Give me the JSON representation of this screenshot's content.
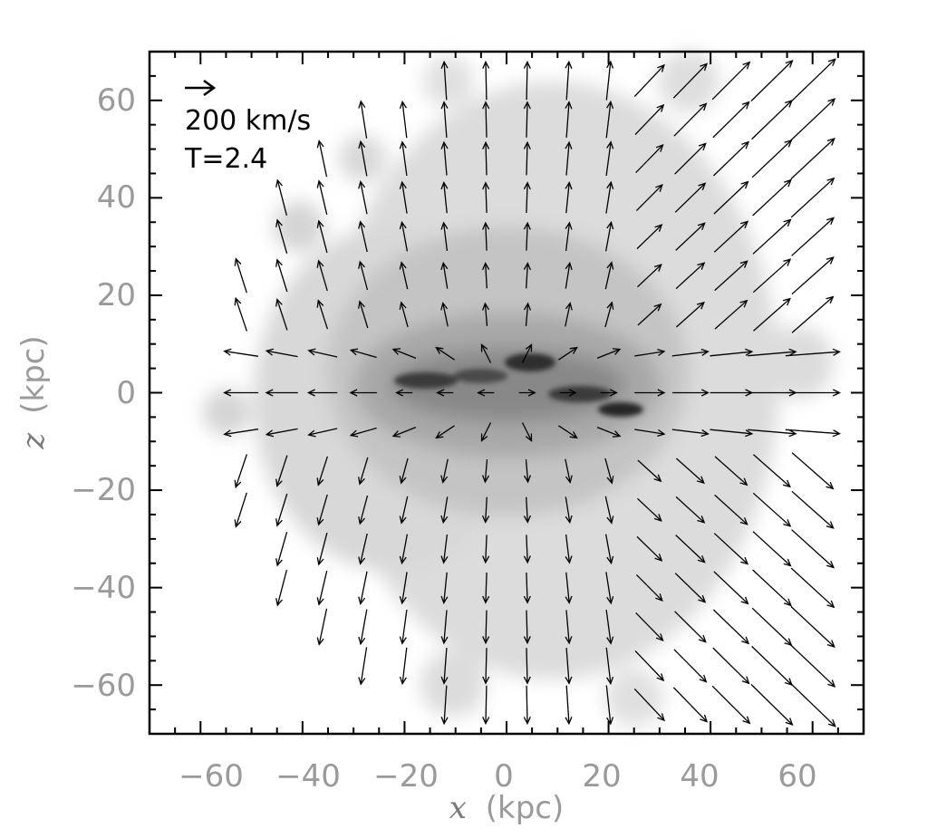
{
  "chart_data": {
    "type": "scatter",
    "subtype": "velocity-vector-field over gas density map",
    "xlabel_var": "x",
    "xlabel_unit": "(kpc)",
    "ylabel_var": "z",
    "ylabel_unit": "(kpc)",
    "xlim": [
      -70,
      70
    ],
    "ylim": [
      -70,
      70
    ],
    "x_ticks": [
      -60,
      -40,
      -20,
      0,
      20,
      40,
      60
    ],
    "y_ticks": [
      -60,
      -40,
      -20,
      0,
      20,
      40,
      60
    ],
    "x_tick_labels": [
      "−60",
      "−40",
      "−20",
      "0",
      "20",
      "40",
      "60"
    ],
    "y_tick_labels": [
      "−60",
      "−40",
      "−20",
      "0",
      "20",
      "40",
      "60"
    ],
    "annotations": {
      "scale_arrow_label": "200 km/s",
      "scale_arrow_speed_kms": 200,
      "time_label": "T=2.4"
    },
    "grid": false,
    "background_map": "grayscale projected gas density",
    "vector_grid_spacing_kpc": 8,
    "arrow_color": "#000000",
    "frame_color": "#000000",
    "tick_label_color": "#9a9a9a"
  }
}
